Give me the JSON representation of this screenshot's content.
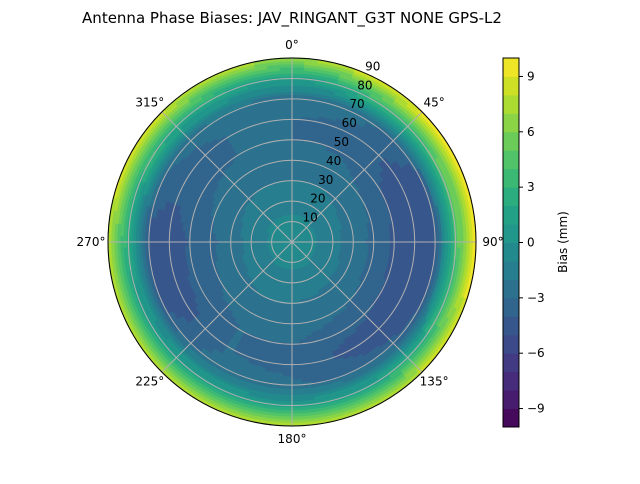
{
  "chart_data": {
    "type": "heatmap",
    "subtype": "polar-contour",
    "title": "Antenna Phase Biases: JAV_RINGANT_G3T NONE GPS-L2",
    "colorbar_label": "Bias (mm)",
    "colormap": "viridis",
    "levels": {
      "min": -10,
      "max": 10,
      "step": 1
    },
    "colorbar_ticks": [
      -9,
      -6,
      -3,
      0,
      3,
      6,
      9
    ],
    "colorbar_tick_labels": [
      "−9",
      "−6",
      "−3",
      "0",
      "3",
      "6",
      "9"
    ],
    "angular_ticks": [
      "0°",
      "45°",
      "90°",
      "135°",
      "180°",
      "225°",
      "270°",
      "315°"
    ],
    "angular_tick_values": [
      0,
      45,
      90,
      135,
      180,
      225,
      270,
      315
    ],
    "angular_direction": "clockwise",
    "angular_zero": "top",
    "radial_ticks": [
      "10",
      "20",
      "30",
      "40",
      "50",
      "60",
      "70",
      "80",
      "90"
    ],
    "radial_tick_values": [
      10,
      20,
      30,
      40,
      50,
      60,
      70,
      80,
      90
    ],
    "rlim": [
      0,
      90
    ],
    "grid": true,
    "azimuths": [
      0,
      30,
      60,
      90,
      120,
      150,
      180,
      210,
      240,
      270,
      300,
      330
    ],
    "zeniths": [
      0,
      10,
      20,
      30,
      40,
      50,
      60,
      70,
      80,
      90
    ],
    "values": [
      [
        -0.5,
        -0.5,
        -0.5,
        -0.5,
        -0.5,
        -0.5,
        -0.5,
        -0.5,
        -0.5,
        -0.5,
        -0.5,
        -0.5
      ],
      [
        -0.8,
        -0.8,
        -0.9,
        -0.9,
        -0.9,
        -0.8,
        -0.8,
        -0.8,
        -0.9,
        -0.9,
        -0.8,
        -0.8
      ],
      [
        -1.3,
        -1.3,
        -1.5,
        -1.6,
        -1.5,
        -1.4,
        -1.3,
        -1.3,
        -1.5,
        -1.6,
        -1.4,
        -1.3
      ],
      [
        -2.0,
        -2.0,
        -2.4,
        -2.6,
        -2.5,
        -2.2,
        -2.0,
        -2.0,
        -2.4,
        -2.6,
        -2.2,
        -2.0
      ],
      [
        -2.5,
        -2.6,
        -3.0,
        -3.2,
        -3.1,
        -2.8,
        -2.5,
        -2.5,
        -3.0,
        -3.2,
        -2.8,
        -2.5
      ],
      [
        -3.0,
        -3.1,
        -4.0,
        -4.2,
        -4.1,
        -3.6,
        -3.0,
        -3.0,
        -3.6,
        -3.8,
        -3.3,
        -3.0
      ],
      [
        -3.0,
        -3.3,
        -4.5,
        -5.0,
        -5.0,
        -4.5,
        -3.3,
        -3.0,
        -4.5,
        -5.0,
        -3.5,
        -3.0
      ],
      [
        -2.5,
        -2.8,
        -4.0,
        -4.5,
        -4.0,
        -3.5,
        -2.8,
        -2.5,
        -4.0,
        -4.5,
        -3.0,
        -2.5
      ],
      [
        1.0,
        3.0,
        4.0,
        4.0,
        3.0,
        1.5,
        1.0,
        1.0,
        1.5,
        2.0,
        3.0,
        2.0
      ],
      [
        7.0,
        9.0,
        10.0,
        10.0,
        9.0,
        8.0,
        7.5,
        7.5,
        7.5,
        8.0,
        9.0,
        8.0
      ]
    ]
  }
}
